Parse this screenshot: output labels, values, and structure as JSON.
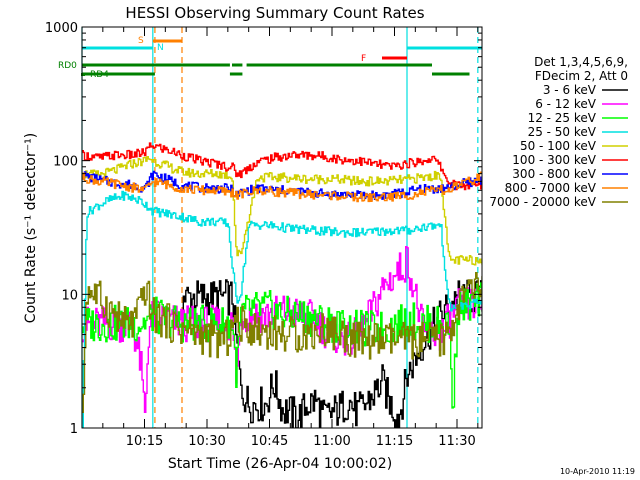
{
  "chart_data": {
    "type": "line",
    "title": "HESSI Observing Summary Count Rates",
    "xlabel": "Start Time (26-Apr-04 10:00:02)",
    "ylabel": "Count Rate (s⁻¹ detector⁻¹)",
    "y_scale": "log",
    "ylim": [
      1,
      1000
    ],
    "xlim_minutes": [
      0,
      96
    ],
    "x_ticks": [
      {
        "t": 15,
        "label": "10:15"
      },
      {
        "t": 30,
        "label": "10:30"
      },
      {
        "t": 45,
        "label": "10:45"
      },
      {
        "t": 60,
        "label": "11:00"
      },
      {
        "t": 75,
        "label": "11:15"
      },
      {
        "t": 90,
        "label": "11:30"
      }
    ],
    "y_ticks": [
      {
        "v": 1,
        "label": "1"
      },
      {
        "v": 10,
        "label": "10"
      },
      {
        "v": 100,
        "label": "100"
      },
      {
        "v": 1000,
        "label": "1000"
      }
    ],
    "legend_header": [
      "Det 1,3,4,5,6,9,",
      "FDecim 2, Att 0"
    ],
    "legend_position": "right",
    "timestamp": "10-Apr-2010 11:19",
    "flags": [
      {
        "label": "RD0",
        "color": "#008000",
        "segments": [
          [
            0,
            35.5
          ],
          [
            36,
            38.5
          ],
          [
            39.5,
            84
          ]
        ]
      },
      {
        "label": "RD4",
        "color": "#008000",
        "segments": [
          [
            0,
            17.5
          ],
          [
            35.5,
            38.5
          ],
          [
            84,
            93
          ]
        ]
      },
      {
        "label": "S",
        "color": "#ff8000",
        "segments": [
          [
            17,
            24
          ]
        ]
      },
      {
        "label": "N",
        "color": "#00e0e0",
        "segments": [
          [
            0,
            17
          ],
          [
            78,
            96
          ]
        ]
      },
      {
        "label": "F",
        "color": "#ff0000",
        "segments": [
          [
            72,
            78
          ]
        ]
      }
    ],
    "vlines": [
      {
        "t": 0,
        "color": "#00e0e0",
        "dashed": false
      },
      {
        "t": 17,
        "color": "#00e0e0",
        "dashed": false
      },
      {
        "t": 78,
        "color": "#00e0e0",
        "dashed": false
      },
      {
        "t": 95,
        "color": "#00e0e0",
        "dashed": true
      },
      {
        "t": 17.5,
        "color": "#ff8000",
        "dashed": true
      },
      {
        "t": 24,
        "color": "#ff8000",
        "dashed": true
      }
    ],
    "series": [
      {
        "name": "3 - 6 keV",
        "color": "#000000",
        "x": [
          24,
          28,
          32,
          36,
          38,
          40,
          44,
          46,
          48,
          50,
          52,
          54,
          56,
          58,
          60,
          62,
          64,
          66,
          68,
          70,
          72,
          74,
          76,
          78,
          82,
          86,
          90,
          94,
          96
        ],
        "y": [
          9.5,
          9.5,
          9.5,
          9.5,
          2.0,
          1.5,
          1.5,
          2.2,
          1.4,
          1.3,
          1.2,
          1.5,
          1.6,
          1.2,
          1.3,
          1.4,
          1.6,
          1.3,
          1.5,
          1.8,
          2.2,
          1.5,
          1.2,
          2.5,
          4.5,
          7.0,
          9.5,
          9.5,
          9.5
        ]
      },
      {
        "name": "6 - 12 keV",
        "color": "#ff00ff",
        "x": [
          0,
          8,
          12,
          14,
          15,
          16,
          17,
          24,
          30,
          36,
          37,
          38,
          40,
          44,
          48,
          52,
          56,
          58,
          60,
          64,
          66,
          68,
          70,
          72,
          74,
          76,
          78,
          82,
          86,
          90,
          94,
          96
        ],
        "y": [
          6.0,
          6.0,
          6.0,
          3.0,
          1.2,
          6.0,
          7.0,
          6.0,
          6.0,
          6.0,
          2.2,
          7.0,
          7.0,
          7.0,
          7.5,
          7.0,
          6.5,
          5.5,
          5.0,
          4.5,
          5.0,
          6.0,
          8.0,
          11.0,
          13.0,
          15.0,
          18.0,
          5.0,
          5.0,
          8.0,
          8.5,
          8.5
        ]
      },
      {
        "name": "12 - 25 keV",
        "color": "#00ff00",
        "x": [
          0,
          6,
          10,
          14,
          16,
          17,
          24,
          32,
          36,
          37,
          38,
          40,
          44,
          48,
          52,
          56,
          60,
          64,
          68,
          72,
          76,
          78,
          82,
          86,
          88,
          89,
          90,
          94,
          96
        ],
        "y": [
          6.0,
          6.0,
          6.0,
          6.0,
          6.5,
          7.0,
          6.0,
          6.0,
          6.0,
          2.5,
          7.0,
          7.5,
          8.0,
          7.0,
          7.0,
          6.5,
          6.0,
          5.5,
          5.5,
          5.5,
          6.0,
          6.5,
          6.0,
          6.0,
          6.0,
          1.3,
          8.0,
          8.5,
          9.0
        ]
      },
      {
        "name": "25 - 50 keV",
        "color": "#00e0e0",
        "x": [
          0,
          1,
          3,
          6,
          10,
          14,
          16,
          17,
          24,
          28,
          32,
          35,
          36,
          37,
          38,
          40,
          44,
          50,
          56,
          62,
          68,
          74,
          78,
          82,
          86,
          88,
          90,
          94,
          96
        ],
        "y": [
          1.0,
          40,
          45,
          50,
          55,
          50,
          45,
          42,
          38,
          35,
          35,
          34,
          16,
          9,
          10,
          33,
          33,
          31,
          30,
          29,
          29,
          30,
          30,
          32,
          33,
          8,
          8,
          8.5,
          8.8
        ]
      },
      {
        "name": "50 - 100 keV",
        "color": "#d0d000",
        "x": [
          0,
          4,
          8,
          12,
          15,
          16,
          17,
          24,
          28,
          32,
          35,
          36,
          37,
          38,
          42,
          48,
          54,
          60,
          66,
          72,
          78,
          82,
          86,
          88,
          90,
          94,
          96
        ],
        "y": [
          80,
          78,
          85,
          95,
          100,
          105,
          100,
          82,
          80,
          80,
          78,
          75,
          20,
          20,
          75,
          75,
          73,
          73,
          70,
          70,
          72,
          75,
          78,
          18,
          18,
          18,
          18
        ]
      },
      {
        "name": "100 - 300 keV",
        "color": "#ff0000",
        "x": [
          0,
          4,
          8,
          12,
          15,
          16,
          17,
          24,
          28,
          32,
          35,
          36,
          37,
          38,
          42,
          46,
          50,
          54,
          58,
          62,
          66,
          70,
          74,
          78,
          82,
          84,
          86,
          88,
          90,
          94,
          96
        ],
        "y": [
          110,
          105,
          110,
          110,
          115,
          125,
          130,
          110,
          100,
          95,
          90,
          90,
          80,
          80,
          98,
          105,
          110,
          110,
          108,
          102,
          100,
          95,
          90,
          95,
          100,
          105,
          90,
          68,
          65,
          65,
          65
        ]
      },
      {
        "name": "300 - 800 keV",
        "color": "#0000ff",
        "x": [
          0,
          4,
          8,
          12,
          15,
          16,
          17,
          24,
          28,
          32,
          35,
          36,
          37,
          38,
          42,
          48,
          54,
          60,
          66,
          72,
          78,
          82,
          86,
          88,
          90,
          94,
          96
        ],
        "y": [
          78,
          72,
          68,
          66,
          62,
          70,
          80,
          65,
          63,
          62,
          62,
          60,
          55,
          58,
          62,
          60,
          58,
          56,
          55,
          55,
          58,
          62,
          62,
          62,
          66,
          70,
          72
        ]
      },
      {
        "name": "800 - 7000 keV",
        "color": "#ff8000",
        "x": [
          0,
          4,
          8,
          12,
          15,
          16,
          17,
          24,
          28,
          32,
          35,
          36,
          37,
          38,
          42,
          48,
          54,
          60,
          66,
          72,
          78,
          82,
          86,
          88,
          90,
          94,
          96
        ],
        "y": [
          75,
          70,
          67,
          63,
          60,
          65,
          70,
          62,
          60,
          60,
          58,
          58,
          55,
          56,
          60,
          58,
          56,
          55,
          53,
          53,
          55,
          58,
          60,
          60,
          65,
          72,
          78
        ]
      },
      {
        "name": "7000 - 20000 keV",
        "color": "#808000",
        "x": [
          0,
          1,
          3,
          6,
          8,
          10,
          12,
          14,
          15,
          16,
          17,
          24,
          28,
          32,
          34,
          35,
          36,
          37,
          38,
          42,
          48,
          54,
          58,
          62,
          66,
          70,
          74,
          78,
          80,
          82,
          84,
          86,
          88,
          90,
          92,
          94,
          96
        ],
        "y": [
          1.0,
          11,
          10,
          8,
          7,
          6,
          6,
          8,
          11,
          9,
          7,
          5.5,
          5.0,
          4.5,
          4.5,
          4.8,
          6.0,
          6.0,
          6.0,
          5.5,
          5.0,
          5.0,
          5.5,
          5.0,
          4.5,
          4.5,
          4.5,
          4.5,
          4.5,
          4.5,
          4.5,
          4.5,
          5.0,
          8.0,
          10.0,
          11.0,
          12.0
        ]
      }
    ]
  }
}
